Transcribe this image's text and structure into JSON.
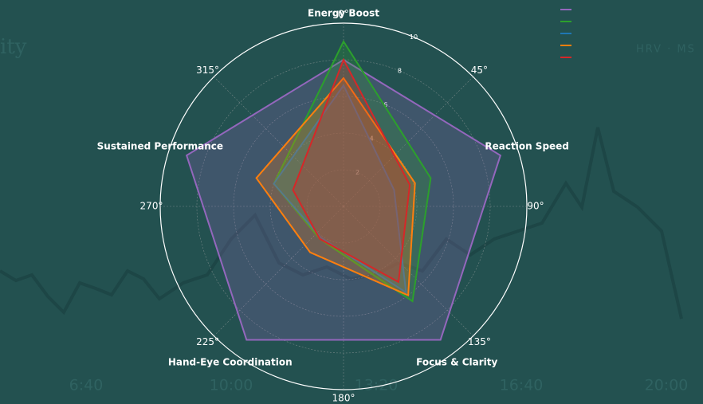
{
  "background": {
    "title_fragment": "ity",
    "legend_fragment": "HRV · MS",
    "xticks": [
      "6:40",
      "10:00",
      "13:20",
      "16:40",
      "20:00"
    ]
  },
  "chart_data": {
    "type": "radar",
    "title": "Energy Boost",
    "categories": [
      "Energy Boost",
      "Reaction Speed",
      "Focus & Clarity",
      "Hand-Eye Coordination",
      "Sustained Performance"
    ],
    "rlim": [
      0,
      10
    ],
    "rticks": [
      2,
      4,
      6,
      8,
      10
    ],
    "angle_ticks": [
      {
        "value": 0,
        "label": "0°"
      },
      {
        "value": 45,
        "label": "45°"
      },
      {
        "value": 90,
        "label": "90°"
      },
      {
        "value": 135,
        "label": "135°"
      },
      {
        "value": 180,
        "label": "180°"
      },
      {
        "value": 225,
        "label": "225°"
      },
      {
        "value": 270,
        "label": "270°"
      },
      {
        "value": 315,
        "label": "315°"
      }
    ],
    "grid": true,
    "series": [
      {
        "color": "#9467bd",
        "values": [
          8,
          9,
          9,
          9,
          9
        ]
      },
      {
        "color": "#2ca02c",
        "values": [
          9,
          5,
          6.4,
          2.2,
          4
        ]
      },
      {
        "color": "#1f77b4",
        "values": [
          6.6,
          2.9,
          5.8,
          2.1,
          4
        ]
      },
      {
        "color": "#ff7f0e",
        "values": [
          7,
          4.1,
          6,
          3.1,
          5
        ]
      },
      {
        "color": "#d62728",
        "values": [
          8,
          3.8,
          5.1,
          2.2,
          2.9
        ]
      }
    ]
  }
}
